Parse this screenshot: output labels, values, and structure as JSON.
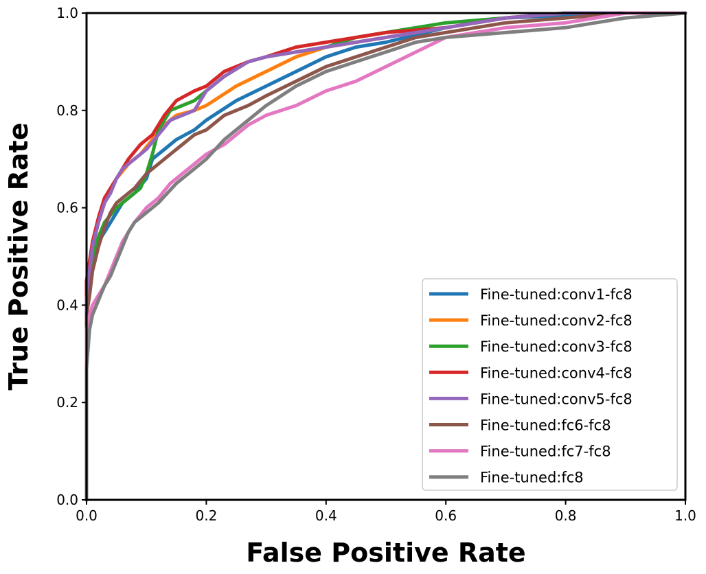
{
  "chart_data": {
    "type": "line",
    "title": "",
    "xlabel": "False Positive Rate",
    "ylabel": "True Positive Rate",
    "xlim": [
      0.0,
      1.0
    ],
    "ylim": [
      0.0,
      1.0
    ],
    "xticks": [
      "0.0",
      "0.2",
      "0.4",
      "0.6",
      "0.8",
      "1.0"
    ],
    "yticks": [
      "0.0",
      "0.2",
      "0.4",
      "0.6",
      "0.8",
      "1.0"
    ],
    "grid": false,
    "legend_position": "lower-right",
    "series": [
      {
        "name": "Fine-tuned:conv1-fc8",
        "color": "#1f77b4",
        "x": [
          0,
          0,
          0.005,
          0.01,
          0.02,
          0.03,
          0.04,
          0.05,
          0.06,
          0.08,
          0.1,
          0.11,
          0.13,
          0.15,
          0.18,
          0.2,
          0.25,
          0.3,
          0.35,
          0.4,
          0.45,
          0.5,
          0.6,
          0.7,
          0.8,
          0.9,
          1.0
        ],
        "y": [
          0,
          0.43,
          0.47,
          0.5,
          0.53,
          0.55,
          0.57,
          0.59,
          0.61,
          0.63,
          0.66,
          0.7,
          0.72,
          0.74,
          0.76,
          0.78,
          0.82,
          0.85,
          0.88,
          0.91,
          0.93,
          0.94,
          0.97,
          0.99,
          0.995,
          1.0,
          1.0
        ]
      },
      {
        "name": "Fine-tuned:conv2-fc8",
        "color": "#ff7f0e",
        "x": [
          0,
          0,
          0.005,
          0.01,
          0.02,
          0.03,
          0.04,
          0.05,
          0.07,
          0.09,
          0.11,
          0.13,
          0.15,
          0.18,
          0.2,
          0.25,
          0.3,
          0.35,
          0.4,
          0.45,
          0.5,
          0.6,
          0.7,
          0.8,
          0.9,
          1.0
        ],
        "y": [
          0,
          0.44,
          0.48,
          0.52,
          0.57,
          0.61,
          0.64,
          0.66,
          0.69,
          0.71,
          0.74,
          0.77,
          0.79,
          0.8,
          0.81,
          0.85,
          0.88,
          0.91,
          0.93,
          0.94,
          0.95,
          0.97,
          0.99,
          1.0,
          1.0,
          1.0
        ]
      },
      {
        "name": "Fine-tuned:conv3-fc8",
        "color": "#2ca02c",
        "x": [
          0,
          0,
          0.005,
          0.01,
          0.02,
          0.03,
          0.05,
          0.07,
          0.09,
          0.1,
          0.11,
          0.12,
          0.14,
          0.16,
          0.18,
          0.2,
          0.23,
          0.27,
          0.3,
          0.35,
          0.4,
          0.45,
          0.5,
          0.6,
          0.7,
          0.8,
          0.9,
          1.0
        ],
        "y": [
          0,
          0.42,
          0.46,
          0.5,
          0.54,
          0.57,
          0.6,
          0.62,
          0.64,
          0.67,
          0.71,
          0.76,
          0.8,
          0.81,
          0.82,
          0.84,
          0.87,
          0.9,
          0.91,
          0.92,
          0.93,
          0.95,
          0.96,
          0.98,
          0.99,
          1.0,
          1.0,
          1.0
        ]
      },
      {
        "name": "Fine-tuned:conv4-fc8",
        "color": "#d62728",
        "x": [
          0,
          0,
          0.005,
          0.01,
          0.02,
          0.03,
          0.05,
          0.07,
          0.09,
          0.11,
          0.13,
          0.15,
          0.18,
          0.2,
          0.23,
          0.27,
          0.3,
          0.35,
          0.4,
          0.45,
          0.5,
          0.6,
          0.7,
          0.8,
          0.9,
          1.0
        ],
        "y": [
          0,
          0.45,
          0.49,
          0.53,
          0.58,
          0.62,
          0.66,
          0.7,
          0.73,
          0.75,
          0.79,
          0.82,
          0.84,
          0.85,
          0.88,
          0.9,
          0.91,
          0.93,
          0.94,
          0.95,
          0.96,
          0.97,
          0.99,
          1.0,
          1.0,
          1.0
        ]
      },
      {
        "name": "Fine-tuned:conv5-fc8",
        "color": "#9467bd",
        "x": [
          0,
          0,
          0.005,
          0.01,
          0.02,
          0.03,
          0.04,
          0.05,
          0.06,
          0.08,
          0.1,
          0.12,
          0.14,
          0.16,
          0.18,
          0.2,
          0.23,
          0.27,
          0.3,
          0.35,
          0.4,
          0.45,
          0.5,
          0.6,
          0.7,
          0.8,
          0.9,
          1.0
        ],
        "y": [
          0,
          0.41,
          0.47,
          0.52,
          0.57,
          0.61,
          0.63,
          0.66,
          0.68,
          0.7,
          0.72,
          0.75,
          0.78,
          0.79,
          0.8,
          0.84,
          0.87,
          0.9,
          0.91,
          0.92,
          0.93,
          0.94,
          0.95,
          0.97,
          0.99,
          1.0,
          1.0,
          1.0
        ]
      },
      {
        "name": "Fine-tuned:fc6-fc8",
        "color": "#8c564b",
        "x": [
          0,
          0,
          0.005,
          0.01,
          0.02,
          0.03,
          0.04,
          0.05,
          0.06,
          0.08,
          0.1,
          0.12,
          0.15,
          0.18,
          0.2,
          0.23,
          0.27,
          0.3,
          0.35,
          0.4,
          0.45,
          0.5,
          0.55,
          0.6,
          0.7,
          0.8,
          0.9,
          1.0
        ],
        "y": [
          0,
          0.38,
          0.42,
          0.47,
          0.52,
          0.56,
          0.59,
          0.61,
          0.62,
          0.64,
          0.67,
          0.69,
          0.72,
          0.75,
          0.76,
          0.79,
          0.81,
          0.83,
          0.86,
          0.89,
          0.91,
          0.93,
          0.95,
          0.96,
          0.98,
          0.99,
          1.0,
          1.0
        ]
      },
      {
        "name": "Fine-tuned:fc7-fc8",
        "color": "#e377c2",
        "x": [
          0,
          0,
          0.005,
          0.01,
          0.02,
          0.03,
          0.04,
          0.05,
          0.06,
          0.08,
          0.1,
          0.12,
          0.14,
          0.17,
          0.2,
          0.23,
          0.27,
          0.3,
          0.35,
          0.4,
          0.45,
          0.5,
          0.55,
          0.6,
          0.7,
          0.8,
          0.85,
          0.9,
          1.0
        ],
        "y": [
          0,
          0.35,
          0.38,
          0.4,
          0.42,
          0.44,
          0.47,
          0.5,
          0.53,
          0.57,
          0.6,
          0.62,
          0.65,
          0.68,
          0.71,
          0.73,
          0.77,
          0.79,
          0.81,
          0.84,
          0.86,
          0.89,
          0.92,
          0.95,
          0.97,
          0.98,
          0.99,
          1.0,
          1.0
        ]
      },
      {
        "name": "Fine-tuned:fc8",
        "color": "#7f7f7f",
        "x": [
          0,
          0,
          0.005,
          0.01,
          0.02,
          0.03,
          0.04,
          0.05,
          0.06,
          0.07,
          0.08,
          0.1,
          0.12,
          0.15,
          0.18,
          0.2,
          0.23,
          0.27,
          0.3,
          0.35,
          0.4,
          0.45,
          0.5,
          0.55,
          0.6,
          0.7,
          0.8,
          0.85,
          0.9,
          1.0
        ],
        "y": [
          0,
          0.27,
          0.35,
          0.38,
          0.41,
          0.44,
          0.46,
          0.49,
          0.52,
          0.55,
          0.57,
          0.59,
          0.61,
          0.65,
          0.68,
          0.7,
          0.74,
          0.78,
          0.81,
          0.85,
          0.88,
          0.9,
          0.92,
          0.94,
          0.95,
          0.96,
          0.97,
          0.98,
          0.99,
          1.0
        ]
      }
    ]
  }
}
